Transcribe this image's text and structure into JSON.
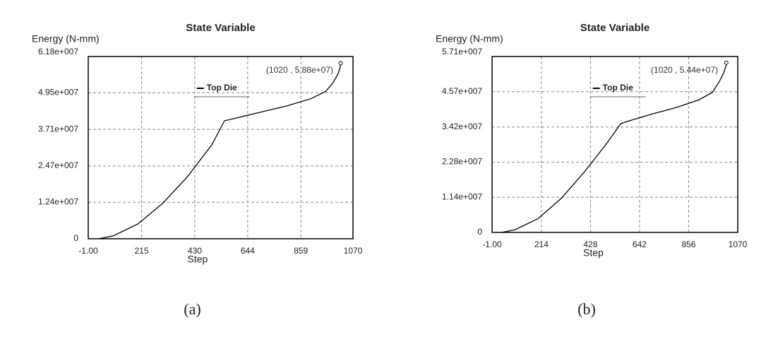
{
  "chart_data": [
    {
      "type": "line",
      "title": "State Variable",
      "y_label": "Energy (N-mm)",
      "x_label": "Step",
      "caption": "(a)",
      "annotation": "(1020 , 5.88e+07)",
      "x": [
        42,
        100,
        200,
        300,
        400,
        500,
        550,
        600,
        700,
        800,
        900,
        960,
        990,
        1010,
        1020
      ],
      "series": [
        {
          "name": "Top Die",
          "color": "#000000",
          "values": [
            0,
            1000000,
            5000000,
            12000000,
            21000000,
            32000000,
            40000000,
            41000000,
            43000000,
            45000000,
            47500000,
            50000000,
            53000000,
            56000000,
            58800000
          ]
        }
      ],
      "xlim": [
        -1,
        1070
      ],
      "xticks": [
        {
          "value": -1,
          "label": "-1.00"
        },
        215,
        430,
        644,
        859,
        1070
      ],
      "ylim": [
        0,
        61800000
      ],
      "yticks": [
        0,
        {
          "value": 12400000,
          "label": "1.24e+007"
        },
        {
          "value": 24700000,
          "label": "2.47e+007"
        },
        {
          "value": 37100000,
          "label": "3.71e+007"
        },
        {
          "value": 49500000,
          "label": "4.95e+007"
        },
        {
          "value": 61800000,
          "label": "6.18e+007"
        }
      ],
      "grid": true
    },
    {
      "type": "line",
      "title": "State Variable",
      "y_label": "Energy (N-mm)",
      "x_label": "Step",
      "caption": "(b)",
      "annotation": "(1020 , 5.44e+07)",
      "x": [
        42,
        100,
        200,
        300,
        400,
        500,
        560,
        600,
        700,
        800,
        900,
        960,
        990,
        1010,
        1020
      ],
      "series": [
        {
          "name": "Top Die",
          "color": "#000000",
          "values": [
            0,
            900000,
            4500000,
            11000000,
            19500000,
            29000000,
            35300000,
            36300000,
            38500000,
            40500000,
            43000000,
            45500000,
            49000000,
            52000000,
            54400000
          ]
        }
      ],
      "xlim": [
        -1,
        1070
      ],
      "xticks": [
        {
          "value": -1,
          "label": "-1.00"
        },
        214,
        428,
        642,
        856,
        1070
      ],
      "ylim": [
        0,
        57100000
      ],
      "yticks": [
        0,
        {
          "value": 11400000,
          "label": "1.14e+007"
        },
        {
          "value": 22800000,
          "label": "2.28e+007"
        },
        {
          "value": 34200000,
          "label": "3.42e+007"
        },
        {
          "value": 45700000,
          "label": "4.57e+007"
        },
        {
          "value": 57100000,
          "label": "5.71e+007"
        }
      ],
      "grid": true
    }
  ]
}
